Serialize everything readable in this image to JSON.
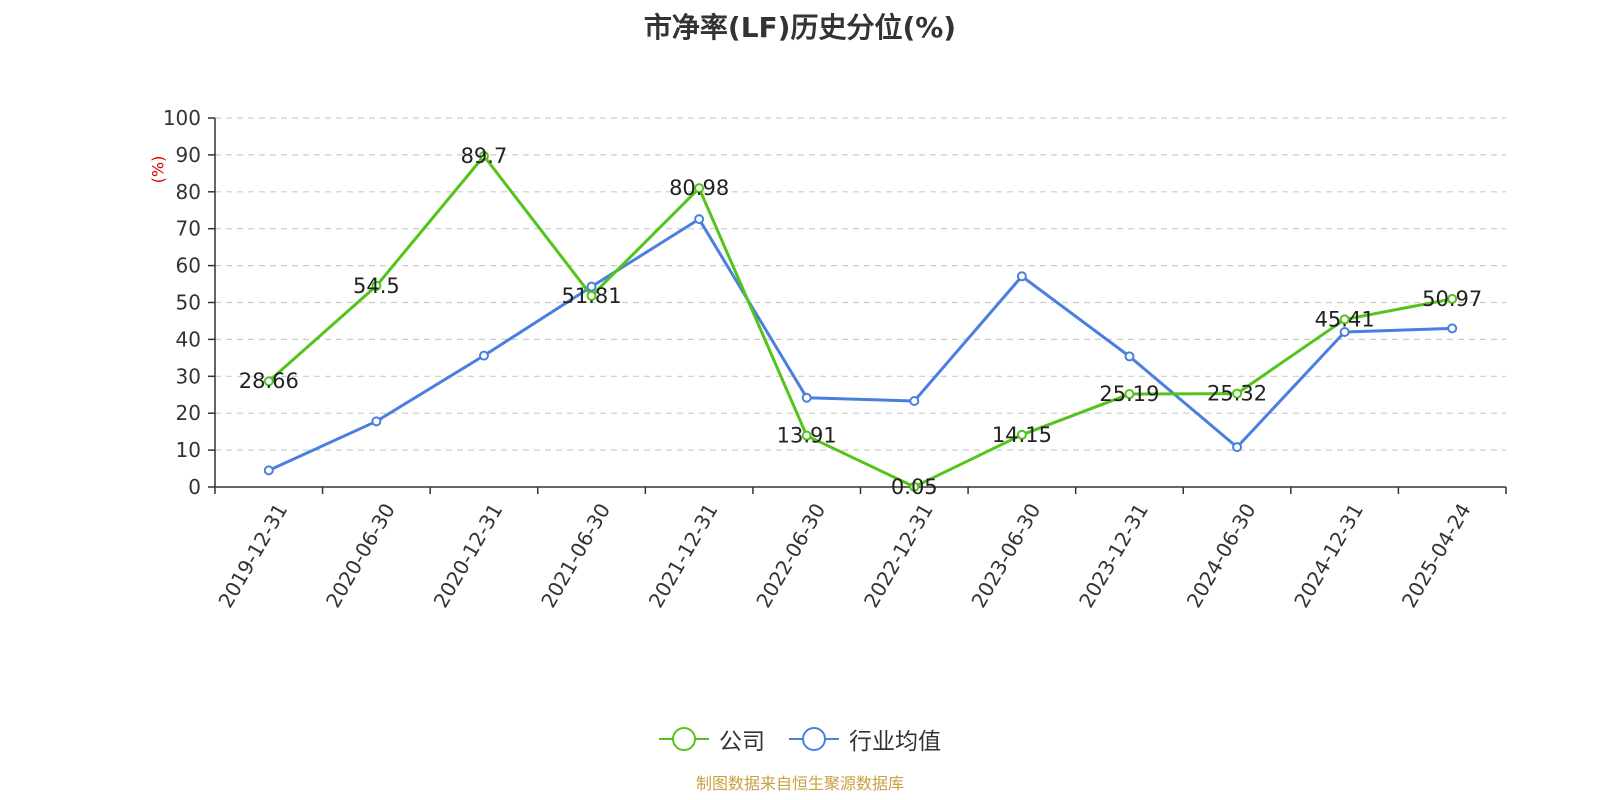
{
  "chart_data": {
    "type": "line",
    "title": "市净率(LF)历史分位(%)",
    "ylabel": "(%)",
    "xlabel": "",
    "ylim": [
      0,
      100
    ],
    "yticks": [
      "0",
      "10",
      "20",
      "30",
      "40",
      "50",
      "60",
      "70",
      "80",
      "90",
      "100"
    ],
    "grid": true,
    "legend_position": "bottom",
    "categories": [
      "2019-12-31",
      "2020-06-30",
      "2020-12-31",
      "2021-06-30",
      "2021-12-31",
      "2022-06-30",
      "2022-12-31",
      "2023-06-30",
      "2023-12-31",
      "2024-06-30",
      "2024-12-31",
      "2025-04-24"
    ],
    "series": [
      {
        "name": "公司",
        "color": "#52c41a",
        "values": [
          28.66,
          54.5,
          89.7,
          51.81,
          80.98,
          13.91,
          0.05,
          14.15,
          25.19,
          25.32,
          45.41,
          50.97
        ],
        "labels": [
          "28.66",
          "54.5",
          "89.7",
          "51.81",
          "80.98",
          "13.91",
          "0.05",
          "14.15",
          "25.19",
          "25.32",
          "45.41",
          "50.97"
        ]
      },
      {
        "name": "行业均值",
        "color": "#4a7fe0",
        "values": [
          4.5,
          17.8,
          35.6,
          54.3,
          72.6,
          24.2,
          23.3,
          57.1,
          35.4,
          10.8,
          42,
          43
        ]
      }
    ]
  },
  "footer": "制图数据来自恒生聚源数据库"
}
